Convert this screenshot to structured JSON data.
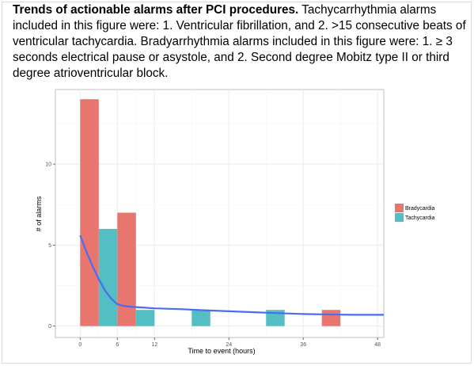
{
  "caption": {
    "title": "Trends of actionable alarms after PCI procedures.",
    "body": " Tachycarrhythmia alarms included in this figure were: 1. Ventricular fibrillation, and  2. >15 consecutive beats of ventricular tachycardia. Bradyarrhythmia  alarms included in this figure were:  1. ≥ 3 seconds electrical pause or asystole, and 2. Second degree Mobitz type II or third degree atrioventricular block."
  },
  "chart_data": {
    "type": "bar",
    "xlabel": "Time to event (hours)",
    "ylabel": "# of alarms",
    "xlim": [
      -4,
      49
    ],
    "ylim": [
      -0.7,
      14.6
    ],
    "x_ticks": [
      0,
      6,
      12,
      24,
      36,
      48
    ],
    "x_tick_labels": [
      "0",
      "6",
      "12",
      "24",
      "36",
      "48"
    ],
    "y_ticks": [
      0,
      5,
      10
    ],
    "y_tick_labels": [
      "0",
      "5",
      "10"
    ],
    "grid": true,
    "legend_position": "right",
    "series": [
      {
        "name": "Bradycardia",
        "color": "#e8766f",
        "bars": [
          {
            "x_start": 0,
            "x_end": 3,
            "value": 14
          },
          {
            "x_start": 6,
            "x_end": 9,
            "value": 7
          },
          {
            "x_start": 39,
            "x_end": 42,
            "value": 1
          }
        ]
      },
      {
        "name": "Tachycardia",
        "color": "#53bfc4",
        "bars": [
          {
            "x_start": 3,
            "x_end": 6,
            "value": 6
          },
          {
            "x_start": 9,
            "x_end": 12,
            "value": 1
          },
          {
            "x_start": 18,
            "x_end": 21,
            "value": 1
          },
          {
            "x_start": 30,
            "x_end": 33,
            "value": 1
          }
        ]
      }
    ],
    "trend_line": {
      "color": "#4a6cf0",
      "x": [
        0,
        1,
        2,
        3,
        4,
        5,
        6,
        7,
        8,
        10,
        12,
        16,
        20,
        24,
        28,
        32,
        36,
        40,
        44,
        48,
        50
      ],
      "y": [
        5.6,
        4.6,
        3.7,
        2.9,
        2.2,
        1.7,
        1.35,
        1.25,
        1.2,
        1.15,
        1.1,
        1.05,
        0.98,
        0.92,
        0.86,
        0.8,
        0.75,
        0.72,
        0.7,
        0.7,
        0.7
      ]
    }
  }
}
